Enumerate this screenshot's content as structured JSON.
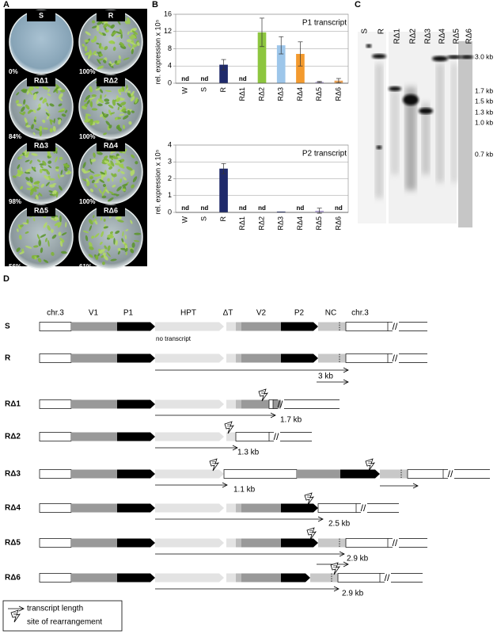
{
  "panel_labels": [
    "A",
    "B",
    "C",
    "D"
  ],
  "plates": [
    {
      "label": "S",
      "percent": "0%"
    },
    {
      "label": "R",
      "percent": "100%"
    },
    {
      "label": "RΔ1",
      "percent": "84%"
    },
    {
      "label": "RΔ2",
      "percent": "100%"
    },
    {
      "label": "RΔ3",
      "percent": "98%"
    },
    {
      "label": "RΔ4",
      "percent": "100%"
    },
    {
      "label": "RΔ5",
      "percent": "56%"
    },
    {
      "label": "RΔ6",
      "percent": "61%"
    }
  ],
  "chart_data": [
    {
      "type": "bar",
      "title": "P1 transcript",
      "y_label": "rel. expression x 10⁵",
      "categories": [
        "W",
        "S",
        "R",
        "RΔ1",
        "RΔ2",
        "RΔ3",
        "RΔ4",
        "RΔ5",
        "RΔ6"
      ],
      "values": [
        null,
        null,
        4.3,
        null,
        11.8,
        8.8,
        6.8,
        0.3,
        0.6
      ],
      "errors": [
        null,
        null,
        1.2,
        null,
        3.3,
        2.0,
        2.8,
        0.1,
        0.5
      ],
      "value_labels": [
        "nd",
        "nd",
        null,
        "nd",
        null,
        null,
        null,
        null,
        null
      ],
      "colors": [
        "#1f2a6b",
        "#1f2a6b",
        "#1f2a6b",
        "#1f2a6b",
        "#8dc63f",
        "#9dc6ea",
        "#f39a2e",
        "#b7a9d8",
        "#e6a25a"
      ],
      "ylim": [
        0,
        16
      ],
      "yticks": [
        0,
        4,
        8,
        12,
        16
      ],
      "grid": true
    },
    {
      "type": "bar",
      "title": "P2 transcript",
      "y_label": "rel. expression x 10⁵",
      "categories": [
        "W",
        "S",
        "R",
        "RΔ1",
        "RΔ2",
        "RΔ3",
        "RΔ4",
        "RΔ5",
        "RΔ6"
      ],
      "values": [
        null,
        null,
        2.6,
        null,
        null,
        0.05,
        null,
        0.1,
        null
      ],
      "errors": [
        null,
        null,
        0.3,
        null,
        null,
        null,
        null,
        0.15,
        null
      ],
      "value_labels": [
        "nd",
        "nd",
        null,
        "nd",
        "nd",
        null,
        "nd",
        null,
        "nd"
      ],
      "colors": [
        "#1f2a6b",
        "#1f2a6b",
        "#1f2a6b",
        "#1f2a6b",
        "#1f2a6b",
        "#1f2a6b",
        "#1f2a6b",
        "#b7a9d8",
        "#1f2a6b"
      ],
      "ylim": [
        0,
        4
      ],
      "yticks": [
        0,
        1,
        2,
        3,
        4
      ],
      "grid": true
    }
  ],
  "blot": {
    "lanes": [
      "S",
      "R",
      "RΔ1",
      "RΔ2",
      "RΔ3",
      "RΔ4",
      "RΔ5",
      "RΔ6"
    ],
    "markers": [
      "3.0 kb",
      "1.7 kb",
      "1.5 kb",
      "1.3 kb",
      "1.0 kb",
      "0.7 kb"
    ]
  },
  "diagram": {
    "elements": [
      "chr.3",
      "V1",
      "P1",
      "HPT",
      "ΔT",
      "V2",
      "P2",
      "NC",
      "chr.3"
    ],
    "note": "no transcript",
    "rows": [
      "S",
      "R",
      "RΔ1",
      "RΔ2",
      "RΔ3",
      "RΔ4",
      "RΔ5",
      "RΔ6"
    ],
    "lengths": [
      "3 kb",
      "1.7 kb",
      "1.3 kb",
      "1.1 kb",
      "2.5 kb",
      "2.9 kb",
      "2.9 kb"
    ]
  },
  "legend": [
    "transcript length",
    "site of rearrangement"
  ]
}
